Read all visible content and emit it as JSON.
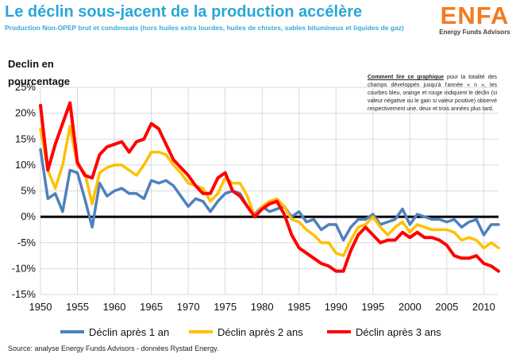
{
  "header": {
    "title": "Le déclin sous-jacent de la production accélère",
    "subtitle": "Production Non-OPEP brut et condensats (hors huiles extra lourdes, huiles de chistes, sables bitumineux et liquides de gaz)"
  },
  "logo": {
    "word": "ENFA",
    "tagline": "Energy Funds Advisors"
  },
  "note": {
    "heading": "Comment lire ce graphique",
    "body": " pour la totalité des champs développés jusqu'à l'année « n », les courbes bleu, orange et rouge indiquent le déclin (si valeur négative ou le gain si valeur positive) observé respectivement une, deux et trois années plus tard."
  },
  "source": "Source: analyse Energy Funds Advisors - données Rystad Energy.",
  "colors": {
    "blue": "#4f81bd",
    "orange": "#ffc000",
    "red": "#ff0000",
    "grid": "#d9d9d9",
    "zero_line": "#000000"
  },
  "chart_data": {
    "type": "line",
    "title": "Le déclin sous-jacent de la production accélère",
    "ylabel": "Declin en pourcentage",
    "xlabel": "",
    "xlim": [
      1950,
      2012
    ],
    "ylim": [
      -15,
      25
    ],
    "x_ticks": [
      "1950",
      "1955",
      "1960",
      "1965",
      "1970",
      "1975",
      "1980",
      "1985",
      "1990",
      "1995",
      "2000",
      "2005",
      "2010"
    ],
    "y_ticks": [
      "25%",
      "20%",
      "15%",
      "10%",
      "5%",
      "0%",
      "-5%",
      "-10%",
      "-15%"
    ],
    "grid": true,
    "legend_position": "bottom",
    "x": [
      1950,
      1951,
      1952,
      1953,
      1954,
      1955,
      1956,
      1957,
      1958,
      1959,
      1960,
      1961,
      1962,
      1963,
      1964,
      1965,
      1966,
      1967,
      1968,
      1969,
      1970,
      1971,
      1972,
      1973,
      1974,
      1975,
      1976,
      1977,
      1978,
      1979,
      1980,
      1981,
      1982,
      1983,
      1984,
      1985,
      1986,
      1987,
      1988,
      1989,
      1990,
      1991,
      1992,
      1993,
      1994,
      1995,
      1996,
      1997,
      1998,
      1999,
      2000,
      2001,
      2002,
      2003,
      2004,
      2005,
      2006,
      2007,
      2008,
      2009,
      2010,
      2011,
      2012
    ],
    "series": [
      {
        "name": "Déclin après 1 an",
        "color": "#4f81bd",
        "values": [
          13.0,
          3.5,
          4.5,
          1.0,
          9.0,
          8.5,
          3.5,
          -2.0,
          6.5,
          4.0,
          5.0,
          5.5,
          4.5,
          4.5,
          3.5,
          7.0,
          6.5,
          7.0,
          6.0,
          4.0,
          2.0,
          3.5,
          3.0,
          1.0,
          3.0,
          4.5,
          5.0,
          4.5,
          2.0,
          0.5,
          2.0,
          1.0,
          1.5,
          2.0,
          0.0,
          1.0,
          -1.0,
          -0.5,
          -2.5,
          -1.5,
          -1.5,
          -4.5,
          -2.0,
          -0.5,
          -0.5,
          0.5,
          -1.5,
          -1.0,
          -0.5,
          1.5,
          -1.5,
          0.5,
          0.0,
          -0.5,
          -0.5,
          -1.0,
          -0.5,
          -2.0,
          -1.0,
          -0.5,
          -3.5,
          -1.5,
          -1.5
        ]
      },
      {
        "name": "Déclin après 2 ans",
        "color": "#ffc000",
        "values": [
          17.0,
          9.0,
          5.5,
          10.0,
          17.5,
          10.0,
          8.5,
          2.5,
          8.5,
          9.5,
          10.0,
          10.0,
          9.0,
          8.0,
          10.0,
          12.5,
          12.5,
          12.0,
          10.0,
          8.5,
          6.5,
          6.0,
          5.5,
          3.0,
          4.5,
          7.5,
          6.5,
          6.5,
          4.0,
          0.0,
          2.0,
          3.0,
          3.5,
          2.0,
          -0.5,
          -1.0,
          -2.5,
          -3.5,
          -5.0,
          -5.0,
          -7.0,
          -7.5,
          -4.5,
          -2.0,
          -1.5,
          0.0,
          -2.0,
          -3.5,
          -2.0,
          -1.0,
          -3.0,
          -1.5,
          -2.0,
          -2.5,
          -2.5,
          -2.5,
          -3.0,
          -4.5,
          -4.0,
          -4.5,
          -6.0,
          -5.0,
          -6.0
        ]
      },
      {
        "name": "Déclin après 3 ans",
        "color": "#ff0000",
        "values": [
          21.5,
          9.0,
          14.0,
          18.0,
          22.0,
          10.5,
          8.0,
          7.5,
          12.0,
          13.5,
          14.0,
          14.5,
          12.5,
          14.5,
          15.0,
          18.0,
          17.0,
          14.0,
          11.0,
          9.5,
          8.0,
          6.0,
          4.5,
          4.5,
          7.5,
          8.5,
          5.0,
          4.0,
          2.0,
          0.0,
          1.5,
          2.5,
          3.0,
          0.5,
          -3.5,
          -6.0,
          -7.0,
          -8.0,
          -9.0,
          -9.5,
          -10.5,
          -10.5,
          -6.5,
          -3.5,
          -2.0,
          -3.5,
          -5.0,
          -4.5,
          -4.5,
          -3.0,
          -4.0,
          -3.0,
          -4.0,
          -4.0,
          -4.5,
          -5.5,
          -7.5,
          -8.0,
          -8.0,
          -7.5,
          -9.0,
          -9.5,
          -10.5
        ]
      }
    ]
  }
}
